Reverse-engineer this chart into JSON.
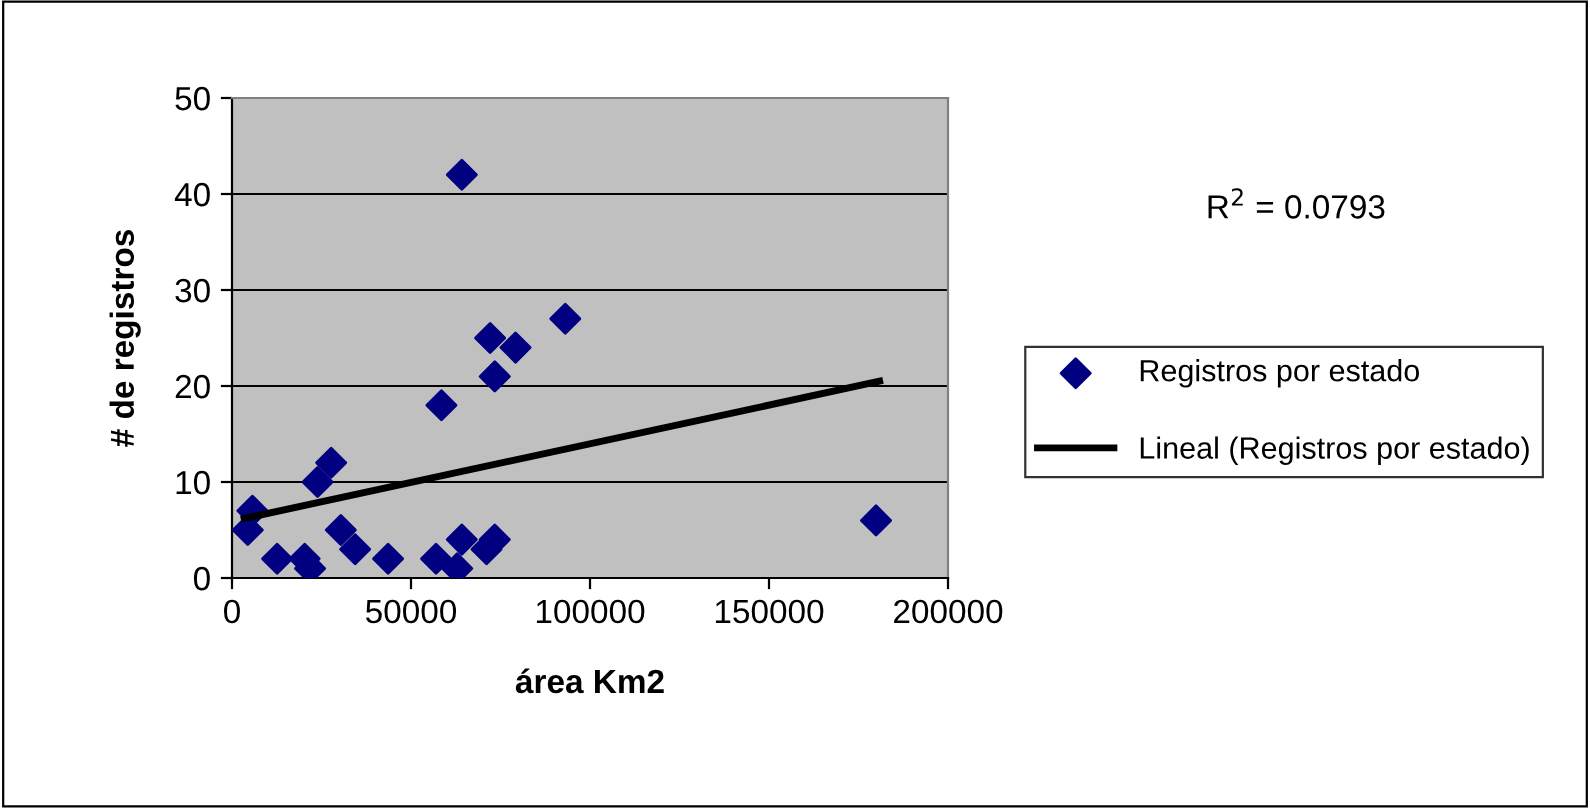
{
  "chart_data": {
    "type": "scatter",
    "xlabel": "área Km2",
    "ylabel": "# de registros",
    "xlim": [
      0,
      200000
    ],
    "ylim": [
      0,
      50
    ],
    "xticks": [
      0,
      50000,
      100000,
      150000,
      200000
    ],
    "yticks": [
      0,
      10,
      20,
      30,
      40,
      50
    ],
    "grid": "y",
    "legend": "right",
    "annotations": [
      "R$^{2}$ = 0.0793"
    ],
    "series": [
      {
        "name": "Registros por estado",
        "marker": "diamond",
        "color": "#000080",
        "x": [
          5700,
          4400,
          12600,
          20300,
          21800,
          23900,
          27700,
          30400,
          34400,
          43600,
          57000,
          58500,
          64200,
          64200,
          62900,
          71100,
          73400,
          72100,
          73400,
          79200,
          93100,
          179900
        ],
        "values": [
          7,
          5,
          2,
          2,
          1,
          10,
          12,
          5,
          3,
          2,
          2,
          18,
          42,
          4,
          1,
          3,
          4,
          25,
          21,
          24,
          27,
          6
        ]
      },
      {
        "name": "Lineal (Registros por estado)",
        "type": "line",
        "marker": "none",
        "color": "#000000",
        "x": [
          3400,
          180900
        ],
        "values": [
          6.2,
          20.5
        ]
      }
    ]
  }
}
